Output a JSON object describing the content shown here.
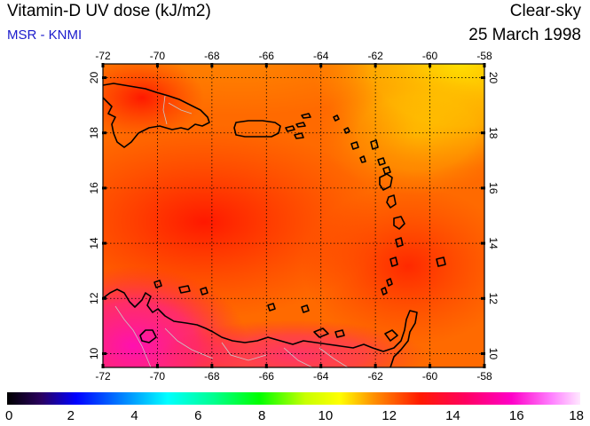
{
  "header": {
    "title": "Vitamin-D UV dose (kJ/m2)",
    "subtitle": "MSR - KNMI",
    "condition": "Clear-sky",
    "date": "25 March 1998"
  },
  "map": {
    "lon_range": [
      -72,
      -58
    ],
    "lat_range": [
      9.5,
      20.5
    ],
    "lon_ticks": [
      "-72",
      "-70",
      "-68",
      "-66",
      "-64",
      "-62",
      "-60",
      "-58"
    ],
    "lat_ticks": [
      "10",
      "12",
      "14",
      "16",
      "18",
      "20"
    ],
    "gridlines": true,
    "colors": {
      "background_orange": "#ff6a00",
      "yellow_region": "#ffd200",
      "red_region": "#ff1a00",
      "magenta_region": "#ff2aa0",
      "coastline": "#000000",
      "borders": "#c8c8c8"
    }
  },
  "colorbar": {
    "min": 0,
    "max": 18,
    "tick_labels": [
      "0",
      "2",
      "4",
      "6",
      "8",
      "10",
      "12",
      "14",
      "16",
      "18"
    ]
  }
}
